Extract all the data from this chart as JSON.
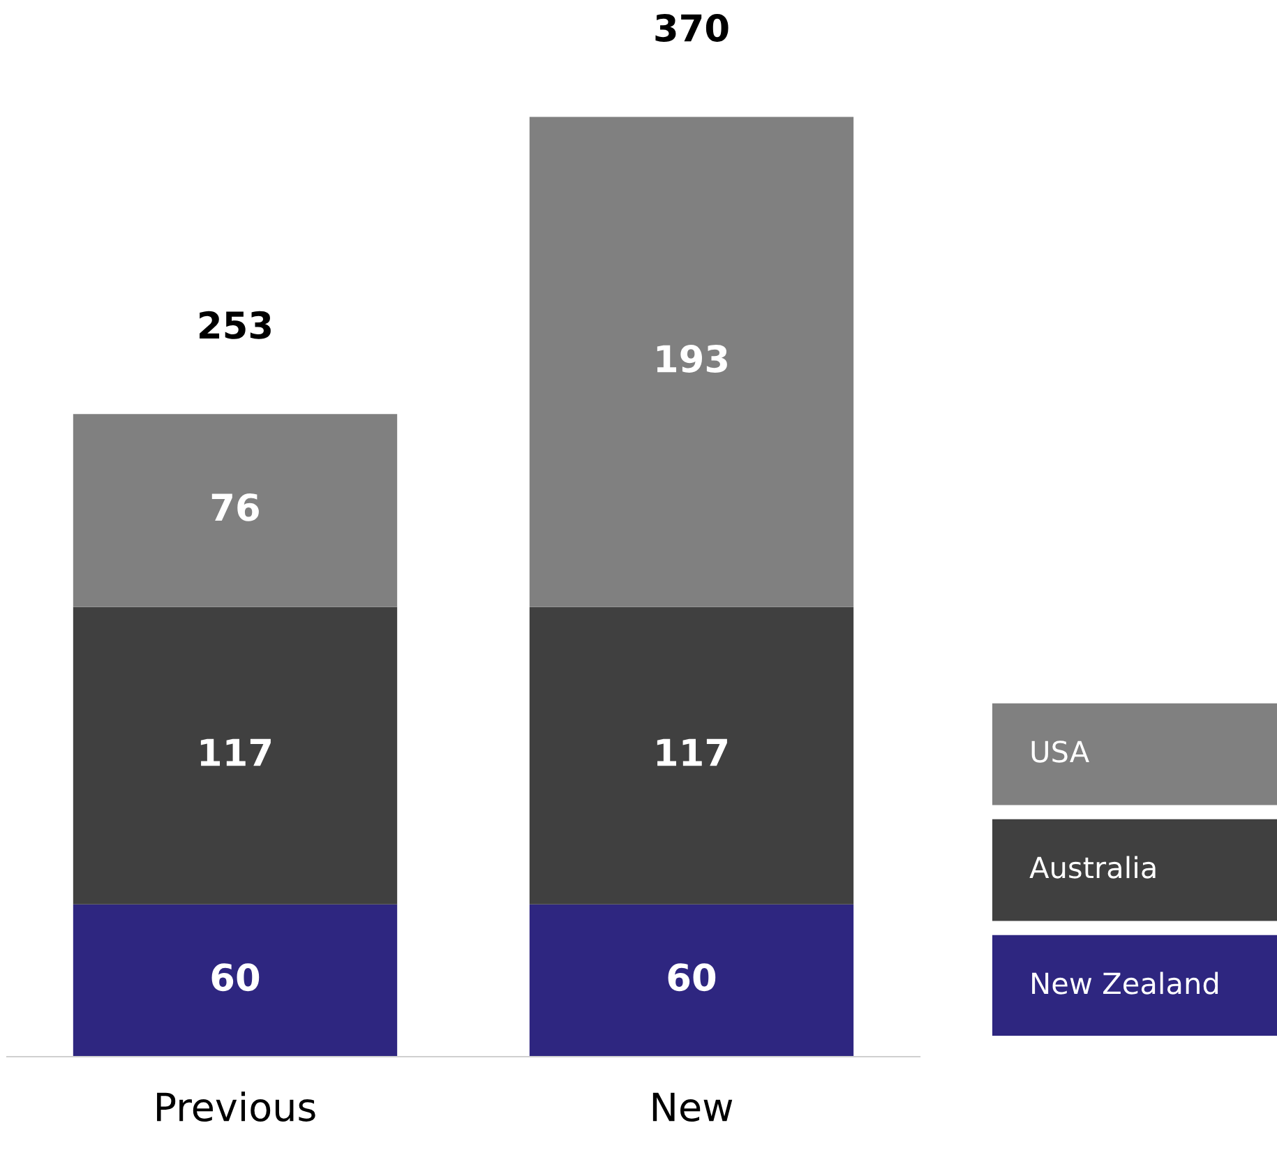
{
  "chart_data": {
    "type": "bar",
    "stacked": true,
    "data_labels": true,
    "categories": [
      "Previous",
      "New"
    ],
    "series": [
      {
        "name": "New Zealand",
        "color": "#2e2680",
        "values": [
          60,
          60
        ]
      },
      {
        "name": "Australia",
        "color": "#404040",
        "values": [
          117,
          117
        ]
      },
      {
        "name": "USA",
        "color": "#808080",
        "values": [
          76,
          193
        ]
      }
    ],
    "totals": [
      "253",
      "370"
    ],
    "legend": "bottom right",
    "grid": false
  }
}
